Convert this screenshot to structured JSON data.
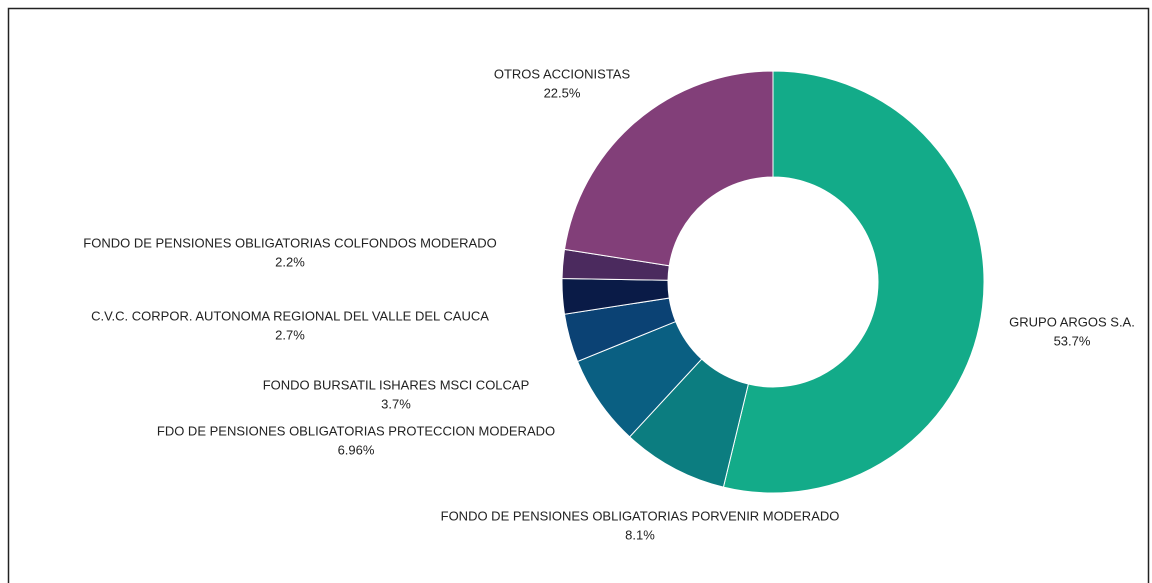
{
  "chart_data": {
    "type": "donut",
    "categories": [
      "GRUPO ARGOS S.A.",
      "FONDO DE PENSIONES OBLIGATORIAS PORVENIR MODERADO",
      "FDO DE PENSIONES OBLIGATORIAS PROTECCION MODERADO",
      "FONDO BURSATIL ISHARES MSCI COLCAP",
      "C.V.C. CORPOR. AUTONOMA REGIONAL DEL VALLE DEL CAUCA",
      "FONDO DE PENSIONES OBLIGATORIAS COLFONDOS MODERADO",
      "OTROS ACCIONISTAS"
    ],
    "values": [
      53.7,
      8.1,
      6.96,
      3.7,
      2.7,
      2.2,
      22.5
    ],
    "value_labels": [
      "53.7%",
      "8.1%",
      "6.96%",
      "3.7%",
      "2.7%",
      "2.2%",
      "22.5%"
    ],
    "colors": [
      "#13ab89",
      "#0c7d80",
      "#0a5f82",
      "#0b4274",
      "#0a1b47",
      "#4b2a5e",
      "#823f79"
    ]
  }
}
